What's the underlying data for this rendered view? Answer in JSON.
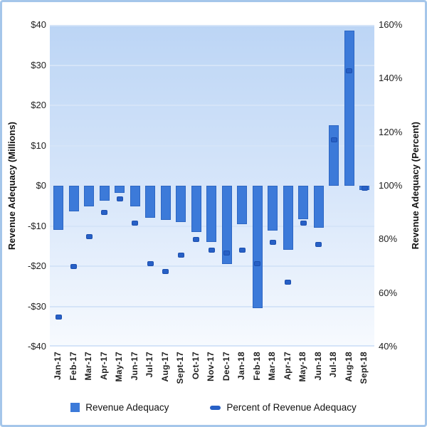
{
  "chart_data": {
    "type": "bar",
    "title": "",
    "categories": [
      "Jan-17",
      "Feb-17",
      "Mar-17",
      "Apr-17",
      "May-17",
      "Jun-17",
      "Jul-17",
      "Aug-17",
      "Sept-17",
      "Oct-17",
      "Nov-17",
      "Dec-17",
      "Jan-18",
      "Feb-18",
      "Mar-18",
      "Apr-17",
      "May-18",
      "Jun-18",
      "Jul-18",
      "Aug-18",
      "Sept-18"
    ],
    "series": [
      {
        "name": "Revenue Adequacy",
        "type": "bar",
        "axis": "left",
        "unit": "millions USD",
        "values": [
          -11,
          -6.3,
          -5.2,
          -3.8,
          -1.8,
          -5.2,
          -8,
          -8.5,
          -9,
          -11.5,
          -14,
          -19.5,
          -9.5,
          -30.5,
          -11.2,
          -16,
          -8.3,
          -10.5,
          15,
          38.5,
          -1
        ]
      },
      {
        "name": "Percent of Revenue Adequacy",
        "type": "scatter",
        "axis": "right",
        "unit": "percent",
        "values": [
          51,
          70,
          81,
          90,
          95,
          86,
          71,
          68,
          74,
          80,
          76,
          75,
          76,
          71,
          79,
          64,
          86,
          78,
          117,
          143,
          99
        ]
      }
    ],
    "left_axis": {
      "label": "Revenue Adequacy (Millions)",
      "min": -40,
      "max": 40,
      "tick_interval": 10,
      "ticks": [
        "$40",
        "$30",
        "$20",
        "$10",
        "$0",
        "-$10",
        "-$20",
        "-$30",
        "-$40"
      ]
    },
    "right_axis": {
      "label": "Revenue Adequacy (Percent)",
      "min": 40,
      "max": 160,
      "tick_interval": 20,
      "ticks": [
        "160%",
        "140%",
        "120%",
        "100%",
        "80%",
        "60%",
        "40%"
      ]
    },
    "grid": "horizontal gridlines every $10, on",
    "legend_position": "bottom"
  },
  "colors": {
    "bar_fill": "#3c7ad9",
    "bar_border": "#2d66c3",
    "marker_fill": "#2760c6",
    "marker_border": "#1c4fae",
    "plot_gradient_top": "#bcd5f5",
    "plot_gradient_bottom": "#f7fafe",
    "gridline": "#d5e4f8",
    "frame_border": "#a5c6ea",
    "text": "#1f1f1f"
  }
}
